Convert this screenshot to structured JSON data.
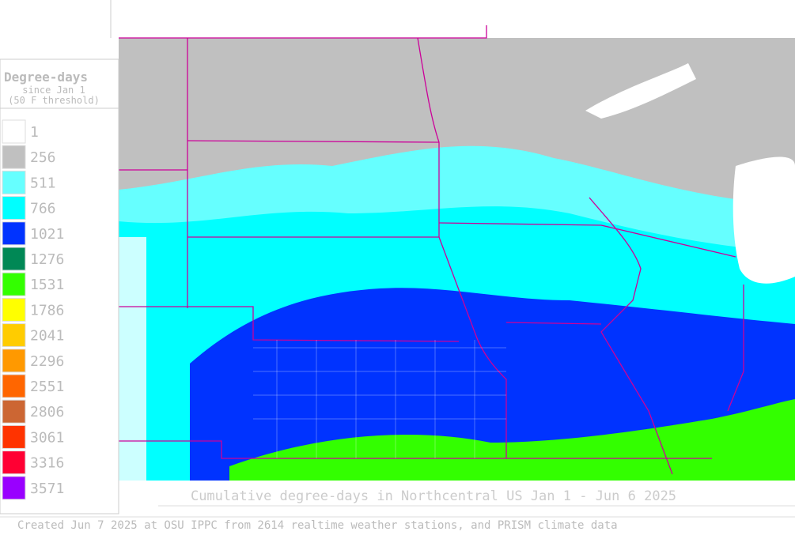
{
  "legend": {
    "title": "Degree-days",
    "subtitle": "since Jan 1",
    "threshold": "(50 F threshold)",
    "entries": [
      {
        "label": 1,
        "color": "#ffffff"
      },
      {
        "label": 256,
        "color": "#c0c0c0"
      },
      {
        "label": 511,
        "color": "#66ffff"
      },
      {
        "label": 766,
        "color": "#00ffff"
      },
      {
        "label": 1021,
        "color": "#0033ff"
      },
      {
        "label": 1276,
        "color": "#008855"
      },
      {
        "label": 1531,
        "color": "#33ff00"
      },
      {
        "label": 1786,
        "color": "#ffff00"
      },
      {
        "label": 2041,
        "color": "#ffcc00"
      },
      {
        "label": 2296,
        "color": "#ff9900"
      },
      {
        "label": 2551,
        "color": "#ff6600"
      },
      {
        "label": 2806,
        "color": "#cc6633"
      },
      {
        "label": 3061,
        "color": "#ff3300"
      },
      {
        "label": 3316,
        "color": "#ff0033"
      },
      {
        "label": 3571,
        "color": "#9900ff"
      }
    ]
  },
  "caption": "Cumulative degree-days in Northcentral US Jan 1 - Jun 6 2025",
  "footer": "Created Jun 7 2025 at OSU IPPC from 2614 realtime weather stations, and PRISM climate data"
}
